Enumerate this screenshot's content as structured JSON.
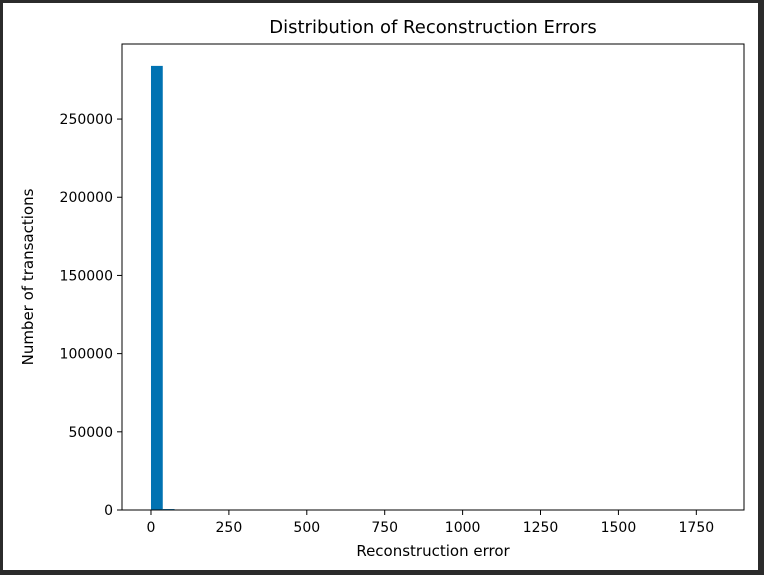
{
  "chart_data": {
    "type": "bar",
    "title": "Distribution of Reconstruction Errors",
    "xlabel": "Reconstruction error",
    "ylabel": "Number of transactions",
    "xlim": [
      -93,
      1903
    ],
    "ylim": [
      0,
      298000
    ],
    "xticks": [
      0,
      250,
      500,
      750,
      1000,
      1250,
      1500,
      1750
    ],
    "yticks": [
      0,
      50000,
      100000,
      150000,
      200000,
      250000
    ],
    "bin_width": 37.8,
    "bins": [
      {
        "start": 0,
        "end": 37.8,
        "count": 284000
      },
      {
        "start": 37.8,
        "end": 75.6,
        "count": 600
      },
      {
        "start": 75.6,
        "end": 113.4,
        "count": 80
      },
      {
        "start": 113.4,
        "end": 151.2,
        "count": 30
      },
      {
        "start": 151.2,
        "end": 189.0,
        "count": 10
      }
    ],
    "bar_color": "#0072b2",
    "grid": false,
    "legend": "none"
  }
}
